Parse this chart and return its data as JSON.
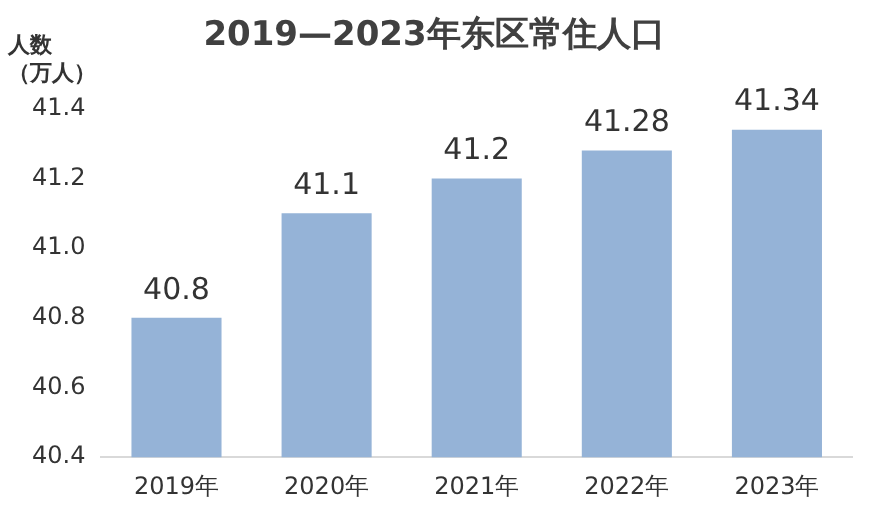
{
  "chart_data": {
    "type": "bar",
    "title": "2019—2023年东区常住人口",
    "ylabel": "人数（万人）",
    "categories": [
      "2019年",
      "2020年",
      "2021年",
      "2022年",
      "2023年"
    ],
    "values": [
      40.8,
      41.1,
      41.2,
      41.28,
      41.34
    ],
    "color": "#95b3d7",
    "ylim": [
      40.4,
      41.4
    ],
    "yticks": [
      40.4,
      40.6,
      40.8,
      {
        "value": 41,
        "label": "41.0"
      },
      41.2,
      41.4
    ],
    "grid": false,
    "legend": false,
    "data_labels": true
  }
}
